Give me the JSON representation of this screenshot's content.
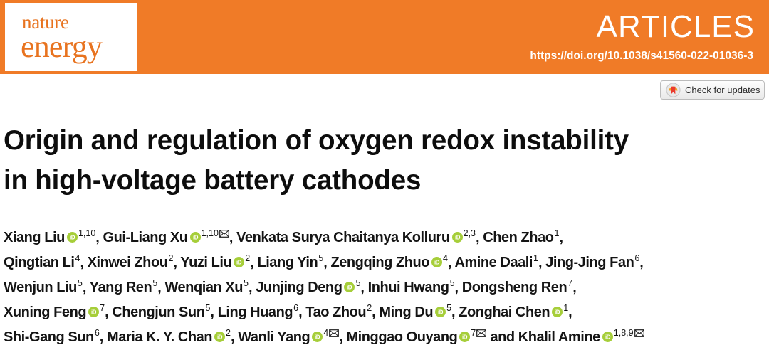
{
  "journal": {
    "logo_top": "nature",
    "logo_bottom": "energy",
    "brand_color": "#f07b27",
    "logo_text_color": "#e8731f",
    "section": "ARTICLES",
    "doi": "https://doi.org/10.1038/s41560-022-01036-3"
  },
  "check_updates": {
    "label": "Check for updates",
    "icon": "check-for-updates-bookmark-icon"
  },
  "title_lines": [
    "Origin and regulation of oxygen redox instability",
    "in high-voltage battery cathodes"
  ],
  "icons": {
    "orcid": "orcid-icon",
    "orcid_color": "#a6ce39",
    "mail": "envelope-icon"
  },
  "author_lines": [
    [
      {
        "name": "Xiang Liu",
        "orcid": true,
        "aff": "1,10",
        "mail": false,
        "sep": ", "
      },
      {
        "name": "Gui-Liang Xu",
        "orcid": true,
        "aff": "1,10",
        "mail": true,
        "sep": ", "
      },
      {
        "name": "Venkata Surya Chaitanya Kolluru",
        "orcid": true,
        "aff": "2,3",
        "mail": false,
        "sep": ", "
      },
      {
        "name": "Chen Zhao",
        "orcid": false,
        "aff": "1",
        "mail": false,
        "sep": ","
      }
    ],
    [
      {
        "name": "Qingtian Li",
        "orcid": false,
        "aff": "4",
        "mail": false,
        "sep": ", "
      },
      {
        "name": "Xinwei Zhou",
        "orcid": false,
        "aff": "2",
        "mail": false,
        "sep": ", "
      },
      {
        "name": "Yuzi Liu",
        "orcid": true,
        "aff": "2",
        "mail": false,
        "sep": ", "
      },
      {
        "name": "Liang Yin",
        "orcid": false,
        "aff": "5",
        "mail": false,
        "sep": ", "
      },
      {
        "name": "Zengqing Zhuo",
        "orcid": true,
        "aff": "4",
        "mail": false,
        "sep": ", "
      },
      {
        "name": "Amine Daali",
        "orcid": false,
        "aff": "1",
        "mail": false,
        "sep": ", "
      },
      {
        "name": "Jing-Jing Fan",
        "orcid": false,
        "aff": "6",
        "mail": false,
        "sep": ","
      }
    ],
    [
      {
        "name": "Wenjun Liu",
        "orcid": false,
        "aff": "5",
        "mail": false,
        "sep": ", "
      },
      {
        "name": "Yang Ren",
        "orcid": false,
        "aff": "5",
        "mail": false,
        "sep": ", "
      },
      {
        "name": "Wenqian Xu",
        "orcid": false,
        "aff": "5",
        "mail": false,
        "sep": ", "
      },
      {
        "name": "Junjing Deng",
        "orcid": true,
        "aff": "5",
        "mail": false,
        "sep": ", "
      },
      {
        "name": "Inhui Hwang",
        "orcid": false,
        "aff": "5",
        "mail": false,
        "sep": ", "
      },
      {
        "name": "Dongsheng Ren",
        "orcid": false,
        "aff": "7",
        "mail": false,
        "sep": ","
      }
    ],
    [
      {
        "name": "Xuning Feng",
        "orcid": true,
        "aff": "7",
        "mail": false,
        "sep": ", "
      },
      {
        "name": "Chengjun Sun",
        "orcid": false,
        "aff": "5",
        "mail": false,
        "sep": ", "
      },
      {
        "name": "Ling Huang",
        "orcid": false,
        "aff": "6",
        "mail": false,
        "sep": ", "
      },
      {
        "name": "Tao Zhou",
        "orcid": false,
        "aff": "2",
        "mail": false,
        "sep": ", "
      },
      {
        "name": "Ming Du",
        "orcid": true,
        "aff": "5",
        "mail": false,
        "sep": ", "
      },
      {
        "name": "Zonghai Chen",
        "orcid": true,
        "aff": "1",
        "mail": false,
        "sep": ","
      }
    ],
    [
      {
        "name": "Shi-Gang Sun",
        "orcid": false,
        "aff": "6",
        "mail": false,
        "sep": ", "
      },
      {
        "name": "Maria K. Y. Chan",
        "orcid": true,
        "aff": "2",
        "mail": false,
        "sep": ", "
      },
      {
        "name": "Wanli Yang",
        "orcid": true,
        "aff": "4",
        "mail": true,
        "sep": ", "
      },
      {
        "name": "Minggao Ouyang",
        "orcid": true,
        "aff": "7",
        "mail": true,
        "sep": " and "
      },
      {
        "name": "Khalil Amine",
        "orcid": true,
        "aff": "1,8,9",
        "mail": true,
        "sep": ""
      }
    ]
  ]
}
